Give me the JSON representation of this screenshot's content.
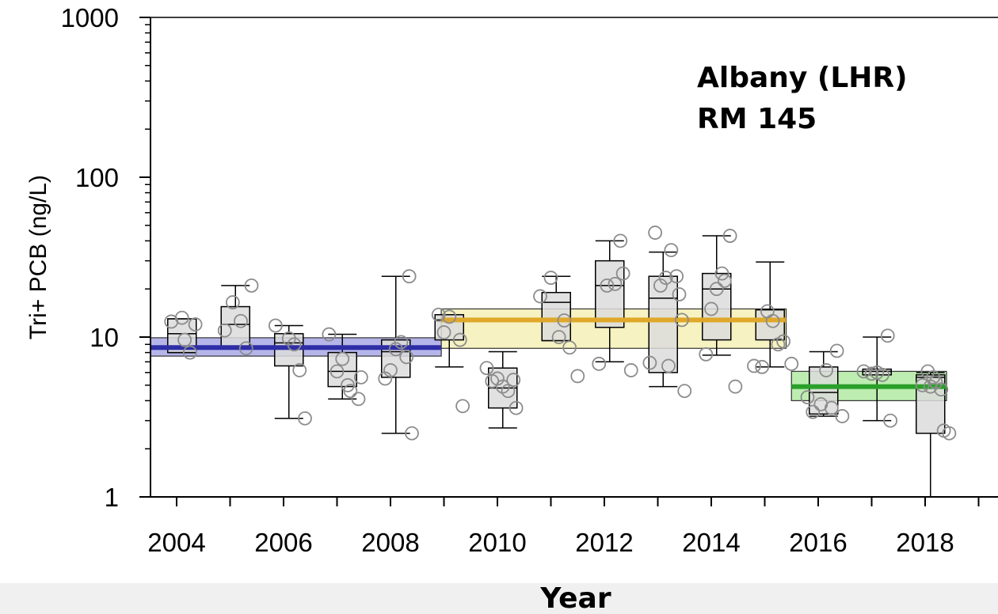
{
  "chart_data": {
    "type": "box",
    "annotation_lines": [
      "Albany (LHR)",
      "RM 145"
    ],
    "xlabel": "Year",
    "ylabel": "Tri+ PCB (ng/L)",
    "y_scale": "log",
    "ylim": [
      1,
      1000
    ],
    "xlim": [
      2003.5,
      2018.8
    ],
    "x_ticks": [
      2004,
      2006,
      2008,
      2010,
      2012,
      2014,
      2016,
      2018
    ],
    "y_ticks": [
      1,
      10,
      100,
      1000
    ],
    "boxes": [
      {
        "year": 2004,
        "x": 2004.1,
        "whisker_low": 8.0,
        "q1": 8.0,
        "median": 10.5,
        "q3": 13.0,
        "whisker_high": 13.0
      },
      {
        "year": 2005,
        "x": 2005.1,
        "whisker_low": 8.5,
        "q1": 8.5,
        "median": 12.0,
        "q3": 15.5,
        "whisker_high": 21.0
      },
      {
        "year": 2006,
        "x": 2006.1,
        "whisker_low": 3.1,
        "q1": 6.6,
        "median": 9.2,
        "q3": 10.5,
        "whisker_high": 11.8
      },
      {
        "year": 2007,
        "x": 2007.1,
        "whisker_low": 4.1,
        "q1": 4.9,
        "median": 6.1,
        "q3": 8.0,
        "whisker_high": 10.4
      },
      {
        "year": 2008,
        "x": 2008.1,
        "whisker_low": 2.5,
        "q1": 5.6,
        "median": 8.1,
        "q3": 9.6,
        "whisker_high": 24.0
      },
      {
        "year": 2009,
        "x": 2009.1,
        "whisker_low": 6.5,
        "q1": 9.6,
        "median": 12.8,
        "q3": 13.8,
        "whisker_high": 13.8
      },
      {
        "year": 2010,
        "x": 2010.1,
        "whisker_low": 2.7,
        "q1": 3.6,
        "median": 4.8,
        "q3": 6.4,
        "whisker_high": 8.1
      },
      {
        "year": 2011,
        "x": 2011.1,
        "whisker_low": 9.5,
        "q1": 9.5,
        "median": 16.5,
        "q3": 19.0,
        "whisker_high": 24.0
      },
      {
        "year": 2012,
        "x": 2012.1,
        "whisker_low": 7.0,
        "q1": 11.5,
        "median": 21.0,
        "q3": 30.0,
        "whisker_high": 40.0
      },
      {
        "year": 2013,
        "x": 2013.1,
        "whisker_low": 4.9,
        "q1": 6.0,
        "median": 17.5,
        "q3": 24.0,
        "whisker_high": 34.0
      },
      {
        "year": 2014,
        "x": 2014.1,
        "whisker_low": 7.7,
        "q1": 9.6,
        "median": 20.0,
        "q3": 25.0,
        "whisker_high": 43.0
      },
      {
        "year": 2015,
        "x": 2015.1,
        "whisker_low": 6.5,
        "q1": 9.6,
        "median": 13.0,
        "q3": 14.8,
        "whisker_high": 29.5
      },
      {
        "year": 2016,
        "x": 2016.1,
        "whisker_low": 3.2,
        "q1": 3.3,
        "median": 4.5,
        "q3": 6.5,
        "whisker_high": 8.1
      },
      {
        "year": 2017,
        "x": 2017.1,
        "whisker_low": 3.0,
        "q1": 5.8,
        "median": 6.1,
        "q3": 6.3,
        "whisker_high": 10.0
      },
      {
        "year": 2018,
        "x": 2018.1,
        "whisker_low": 1.0,
        "q1": 2.5,
        "median": 5.6,
        "q3": 5.8,
        "whisker_high": 6.0
      }
    ],
    "period_means": [
      {
        "x_start": 2003.5,
        "x_end": 2008.95,
        "mean": 8.6,
        "ci_low": 7.6,
        "ci_high": 9.9,
        "line_color": "#2e2ea6",
        "fill_color": "#a8a8e6"
      },
      {
        "x_start": 2008.95,
        "x_end": 2015.4,
        "mean": 12.8,
        "ci_low": 8.5,
        "ci_high": 15.0,
        "line_color": "#e0a82a",
        "fill_color": "#f4f0b6"
      },
      {
        "x_start": 2015.5,
        "x_end": 2018.4,
        "mean": 4.9,
        "ci_low": 4.0,
        "ci_high": 6.1,
        "line_color": "#2aa02a",
        "fill_color": "#b2eaa2"
      }
    ],
    "points": [
      [
        2003.9,
        12.5
      ],
      [
        2004.1,
        13.2
      ],
      [
        2004.15,
        9.6
      ],
      [
        2004.25,
        8.0
      ],
      [
        2004.35,
        12.0
      ],
      [
        2004.9,
        11.0
      ],
      [
        2005.05,
        16.5
      ],
      [
        2005.2,
        12.6
      ],
      [
        2005.3,
        8.5
      ],
      [
        2005.4,
        21.0
      ],
      [
        2005.85,
        11.8
      ],
      [
        2006.1,
        9.8
      ],
      [
        2006.2,
        9.0
      ],
      [
        2006.3,
        6.2
      ],
      [
        2006.4,
        3.1
      ],
      [
        2006.85,
        10.4
      ],
      [
        2007.0,
        6.1
      ],
      [
        2007.1,
        7.3
      ],
      [
        2007.2,
        5.0
      ],
      [
        2007.25,
        4.6
      ],
      [
        2007.4,
        4.1
      ],
      [
        2007.45,
        5.6
      ],
      [
        2007.9,
        5.5
      ],
      [
        2008.0,
        6.2
      ],
      [
        2008.1,
        8.4
      ],
      [
        2008.2,
        9.3
      ],
      [
        2008.3,
        7.5
      ],
      [
        2008.35,
        24.0
      ],
      [
        2008.4,
        2.5
      ],
      [
        2008.9,
        13.8
      ],
      [
        2009.0,
        10.7
      ],
      [
        2009.1,
        13.4
      ],
      [
        2009.3,
        9.6
      ],
      [
        2009.35,
        3.7
      ],
      [
        2009.8,
        6.4
      ],
      [
        2009.9,
        5.3
      ],
      [
        2010.0,
        5.5
      ],
      [
        2010.1,
        4.9
      ],
      [
        2010.2,
        4.6
      ],
      [
        2010.3,
        5.4
      ],
      [
        2010.35,
        3.6
      ],
      [
        2010.8,
        18.0
      ],
      [
        2011.0,
        23.5
      ],
      [
        2011.15,
        10.0
      ],
      [
        2011.25,
        12.7
      ],
      [
        2011.35,
        8.6
      ],
      [
        2011.5,
        5.7
      ],
      [
        2011.9,
        6.8
      ],
      [
        2012.05,
        21.0
      ],
      [
        2012.2,
        21.5
      ],
      [
        2012.3,
        40.0
      ],
      [
        2012.35,
        25.0
      ],
      [
        2012.5,
        6.2
      ],
      [
        2012.85,
        6.9
      ],
      [
        2012.95,
        45.0
      ],
      [
        2013.05,
        21.0
      ],
      [
        2013.15,
        23.5
      ],
      [
        2013.2,
        6.6
      ],
      [
        2013.25,
        35.0
      ],
      [
        2013.35,
        24.0
      ],
      [
        2013.4,
        18.5
      ],
      [
        2013.45,
        12.8
      ],
      [
        2013.5,
        4.6
      ],
      [
        2013.9,
        7.8
      ],
      [
        2014.0,
        15.0
      ],
      [
        2014.1,
        20.0
      ],
      [
        2014.2,
        25.0
      ],
      [
        2014.25,
        22.5
      ],
      [
        2014.35,
        43.0
      ],
      [
        2014.45,
        4.9
      ],
      [
        2014.8,
        6.6
      ],
      [
        2014.95,
        6.5
      ],
      [
        2015.05,
        14.5
      ],
      [
        2015.15,
        12.6
      ],
      [
        2015.25,
        9.0
      ],
      [
        2015.35,
        9.4
      ],
      [
        2015.5,
        6.8
      ],
      [
        2015.8,
        4.2
      ],
      [
        2015.9,
        3.4
      ],
      [
        2016.05,
        3.8
      ],
      [
        2016.15,
        6.2
      ],
      [
        2016.25,
        3.6
      ],
      [
        2016.35,
        8.2
      ],
      [
        2016.45,
        3.2
      ],
      [
        2016.85,
        6.1
      ],
      [
        2017.0,
        5.9
      ],
      [
        2017.1,
        6.0
      ],
      [
        2017.2,
        5.8
      ],
      [
        2017.3,
        10.2
      ],
      [
        2017.35,
        3.0
      ],
      [
        2017.95,
        5.0
      ],
      [
        2018.05,
        6.1
      ],
      [
        2018.1,
        4.9
      ],
      [
        2018.15,
        5.6
      ],
      [
        2018.2,
        5.2
      ],
      [
        2018.3,
        4.7
      ],
      [
        2018.35,
        2.6
      ],
      [
        2018.45,
        2.5
      ]
    ],
    "colors": {
      "box_fill": "#dcdcdc",
      "box_stroke": "#000000",
      "point_stroke": "#8c8c8c",
      "axis": "#000000"
    },
    "grid": false,
    "legend": "none"
  }
}
